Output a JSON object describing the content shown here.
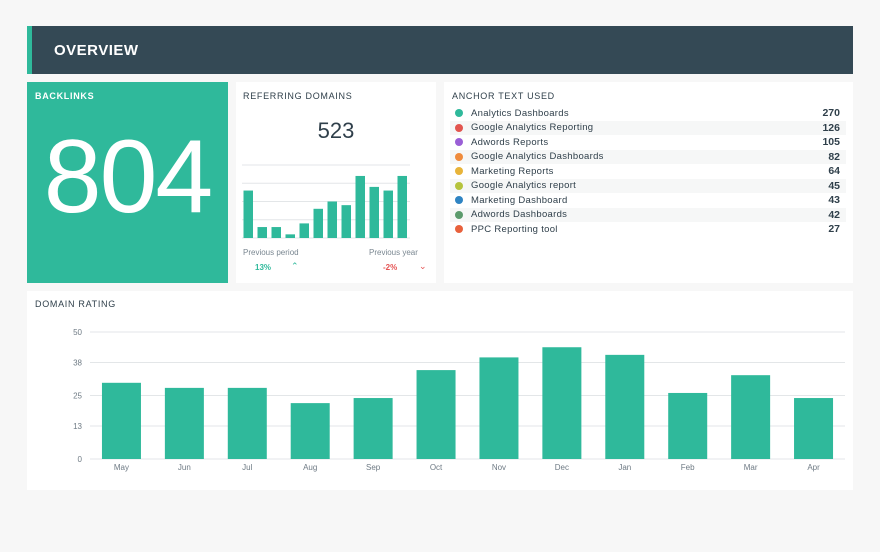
{
  "header": {
    "title": "OVERVIEW"
  },
  "backlinks": {
    "title": "BACKLINKS",
    "value": "804"
  },
  "referring_domains": {
    "title": "REFERRING DOMAINS",
    "value": "523",
    "previous_period_label": "Previous period",
    "previous_period_change": "13%",
    "previous_year_label": "Previous year",
    "previous_year_change": "-2%",
    "positive_color": "#2fb99b",
    "negative_color": "#e55353",
    "bars": [
      13,
      3,
      3,
      1,
      4,
      8,
      10,
      9,
      17,
      14,
      13,
      17
    ]
  },
  "anchor_text": {
    "title": "ANCHOR TEXT USED",
    "items": [
      {
        "label": "Analytics Dashboards",
        "count": "270",
        "color": "#2fb99b"
      },
      {
        "label": "Google Analytics Reporting",
        "count": "126",
        "color": "#e2554f"
      },
      {
        "label": "Adwords Reports",
        "count": "105",
        "color": "#9a5fd6"
      },
      {
        "label": "Google Analytics Dashboards",
        "count": "82",
        "color": "#ef8b3c"
      },
      {
        "label": "Marketing Reports",
        "count": "64",
        "color": "#e8b43a"
      },
      {
        "label": "Google Analytics report",
        "count": "45",
        "color": "#b5c33d"
      },
      {
        "label": "Marketing Dashboard",
        "count": "43",
        "color": "#2f84c3"
      },
      {
        "label": "Adwords Dashboards",
        "count": "42",
        "color": "#5b9a6c"
      },
      {
        "label": "PPC Reporting tool",
        "count": "27",
        "color": "#e8613c"
      }
    ]
  },
  "domain_rating": {
    "title": "DOMAIN RATING"
  },
  "chart_data": {
    "type": "bar",
    "title": "DOMAIN RATING",
    "categories": [
      "May",
      "Jun",
      "Jul",
      "Aug",
      "Sep",
      "Oct",
      "Nov",
      "Dec",
      "Jan",
      "Feb",
      "Mar",
      "Apr"
    ],
    "values": [
      30,
      28,
      28,
      22,
      24,
      35,
      40,
      44,
      41,
      26,
      33,
      24
    ],
    "yticks": [
      "0",
      "13",
      "25",
      "38",
      "50"
    ],
    "ylim": [
      0,
      50
    ],
    "grid": true,
    "bar_color": "#2fb99b"
  }
}
